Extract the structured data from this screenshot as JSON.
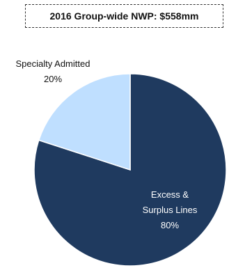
{
  "title": "2016 Group-wide NWP: $558mm",
  "chart_data": {
    "type": "pie",
    "title": "2016 Group-wide NWP: $558mm",
    "slices": [
      {
        "label_lines": [
          "Excess &",
          "Surplus Lines"
        ],
        "value": 80,
        "value_label": "80%",
        "color": "#1F3A5F"
      },
      {
        "label_lines": [
          "Specialty Admitted"
        ],
        "value": 20,
        "value_label": "20%",
        "color": "#BFDFFF"
      }
    ]
  }
}
